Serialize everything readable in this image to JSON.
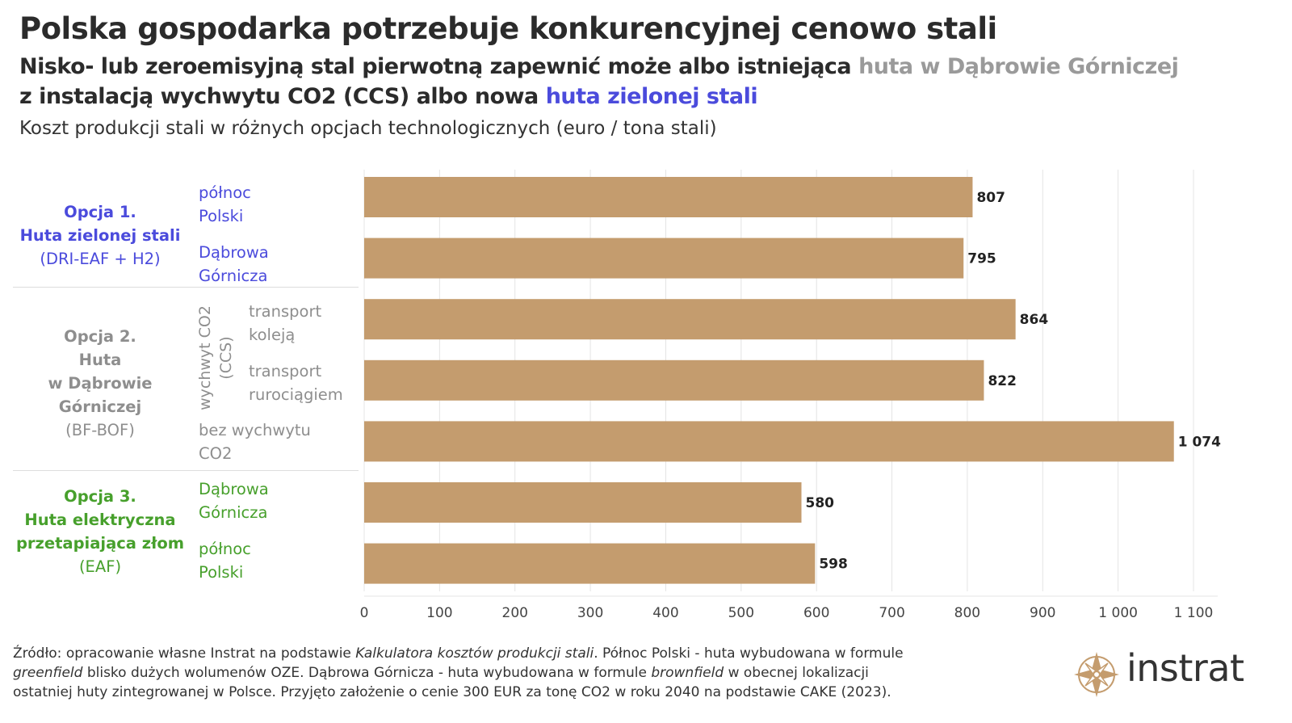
{
  "header": {
    "title": "Polska gospodarka potrzebuje konkurencyjnej cenowo stali",
    "subtitle_part1": "Nisko- lub zeroemisyjną stal pierwotną zapewnić może albo istniejąca ",
    "subtitle_part2": "huta w Dąbrowie Górniczej",
    "subtitle_part3": "z instalacją wychwytu CO2 (CCS) albo nowa ",
    "subtitle_part4": "huta zielonej stali",
    "caption": "Koszt produkcji stali w różnych opcjach technologicznych (euro / tona stali)"
  },
  "groups": {
    "opt1": {
      "title": "Opcja 1.",
      "name": "Huta zielonej stali",
      "tech": "(DRI-EAF + H2)"
    },
    "opt2": {
      "title": "Opcja 2.",
      "name1": "Huta",
      "name2": "w Dąbrowie",
      "name3": "Górniczej",
      "tech": "(BF-BOF)",
      "ccs_line1": "wychwyt CO2",
      "ccs_line2": "(CCS)"
    },
    "opt3": {
      "title": "Opcja 3.",
      "name1": "Huta elektryczna",
      "name2": "przetapiająca złom",
      "tech": "(EAF)"
    }
  },
  "row_labels": [
    {
      "line1": "północ",
      "line2": "Polski"
    },
    {
      "line1": "Dąbrowa",
      "line2": "Górnicza"
    },
    {
      "line1": "transport",
      "line2": "koleją"
    },
    {
      "line1": "transport",
      "line2": "rurociągiem"
    },
    {
      "line1": "bez wychwytu",
      "line2": "CO2"
    },
    {
      "line1": "Dąbrowa",
      "line2": "Górnicza"
    },
    {
      "line1": "północ",
      "line2": "Polski"
    }
  ],
  "chart_data": {
    "type": "bar",
    "orientation": "horizontal",
    "categories": [
      "Opcja 1. północ Polski",
      "Opcja 1. Dąbrowa Górnicza",
      "Opcja 2. wychwyt CO2 (CCS) transport koleją",
      "Opcja 2. wychwyt CO2 (CCS) transport rurociągiem",
      "Opcja 2. bez wychwytu CO2",
      "Opcja 3. Dąbrowa Górnicza",
      "Opcja 3. północ Polski"
    ],
    "values": [
      807,
      795,
      864,
      822,
      1074,
      580,
      598
    ],
    "value_labels": [
      "807",
      "795",
      "864",
      "822",
      "1 074",
      "580",
      "598"
    ],
    "xlim": [
      0,
      1100
    ],
    "xticks": [
      0,
      100,
      200,
      300,
      400,
      500,
      600,
      700,
      800,
      900,
      1000,
      1100
    ],
    "xtick_labels": [
      "0",
      "100",
      "200",
      "300",
      "400",
      "500",
      "600",
      "700",
      "800",
      "900",
      "1 000",
      "1 100"
    ],
    "bar_color": "#c49c6e",
    "grid": "vertical"
  },
  "footer": {
    "l1a": "Źródło: opracowanie własne Instrat na podstawie ",
    "l1b": "Kalkulatora kosztów produkcji stali",
    "l1c": ". Północ Polski - huta wybudowana w formule",
    "l2a": "greenfield",
    "l2b": " blisko dużych wolumenów OZE. Dąbrowa Górnicza - huta wybudowana w formule ",
    "l2c": "brownfield",
    "l2d": " w obecnej lokalizacji",
    "l3": "ostatniej huty zintegrowanej w Polsce. Przyjęto założenie o cenie 300 EUR za tonę CO2 w roku 2040 na podstawie CAKE (2023)."
  },
  "brand": {
    "name": "instrat",
    "logo_icon": "compass-star-icon",
    "logo_color": "#c49c6e"
  }
}
